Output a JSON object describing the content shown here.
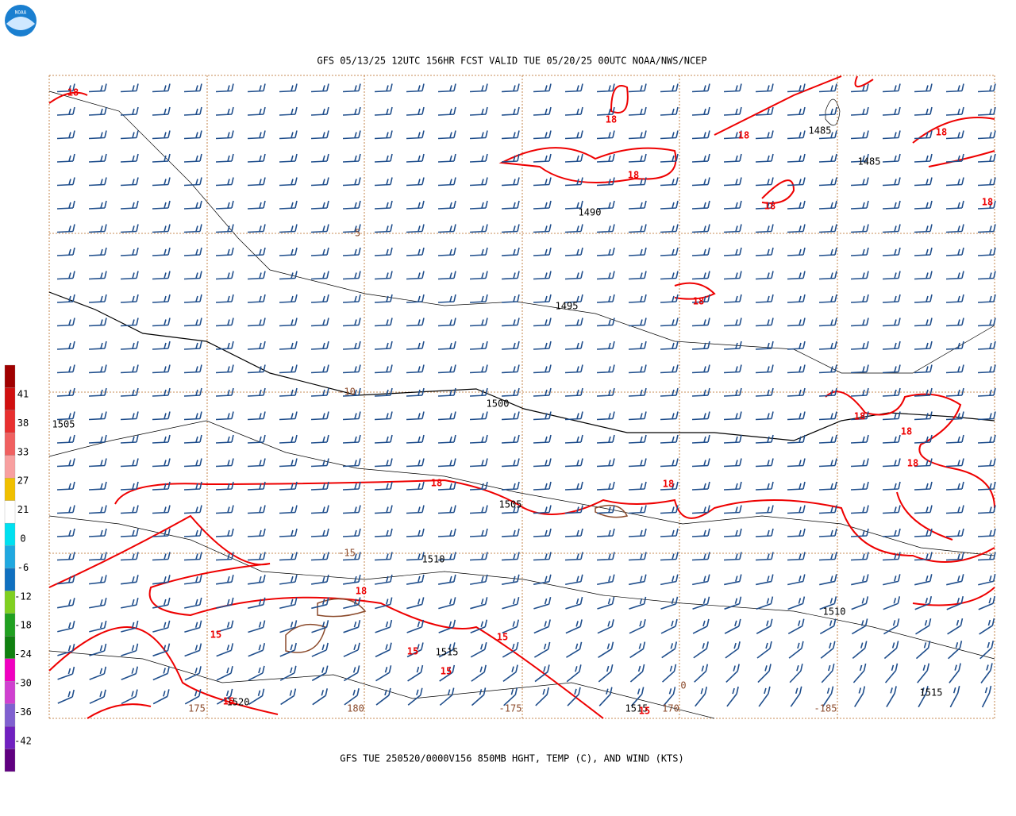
{
  "header": {
    "title": "GFS 05/13/25 12UTC 156HR FCST VALID TUE 05/20/25 00UTC NOAA/NWS/NCEP",
    "logo": "NOAA"
  },
  "footer": {
    "caption": "GFS TUE 250520/0000V156 850MB HGHT, TEMP (C), AND WIND (KTS)"
  },
  "legend": {
    "labels": [
      "41",
      "38",
      "33",
      "27",
      "21",
      "0",
      "-6",
      "-12",
      "-18",
      "-24",
      "-30",
      "-36",
      "-42"
    ]
  },
  "height_labels": [
    "1485",
    "1485",
    "1490",
    "1495",
    "1500",
    "1505",
    "1505",
    "1510",
    "1510",
    "1515",
    "1515",
    "1515",
    "1520"
  ],
  "temp_labels": [
    "18",
    "18",
    "18",
    "18",
    "18",
    "18",
    "18",
    "18",
    "18",
    "18",
    "18",
    "18",
    "18",
    "18",
    "15",
    "15",
    "15",
    "15",
    "15",
    "15"
  ],
  "grid_labels": [
    "-5",
    "-10",
    "-15",
    "175",
    "180",
    "-175",
    "170",
    "-185",
    "0"
  ]
}
